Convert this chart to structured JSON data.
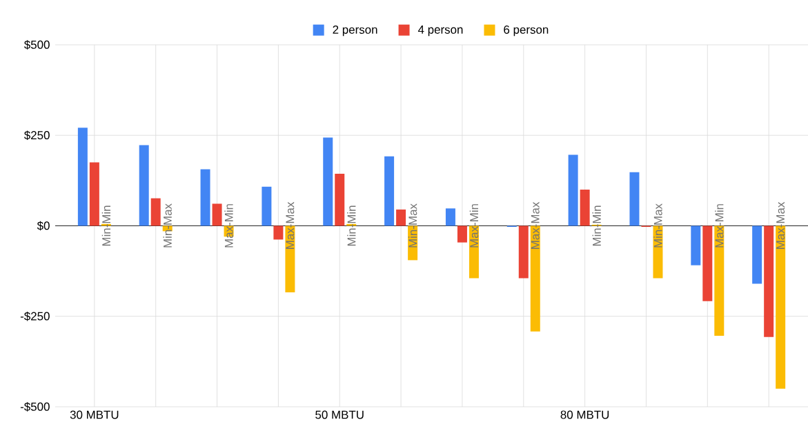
{
  "chart_data": {
    "type": "bar",
    "categories": [
      "30 MBTU",
      null,
      null,
      null,
      "50 MBTU",
      null,
      null,
      null,
      "80 MBTU",
      null,
      null,
      null
    ],
    "series": [
      {
        "name": "2 person",
        "color": "#4285f4",
        "values": [
          271,
          223,
          156,
          108,
          244,
          192,
          48,
          -3,
          196,
          148,
          -109,
          -160
        ]
      },
      {
        "name": "4 person",
        "color": "#ea4335",
        "values": [
          175,
          76,
          61,
          -38,
          144,
          45,
          -46,
          -145,
          100,
          -3,
          -208,
          -307
        ]
      },
      {
        "name": "6 person",
        "color": "#fbbc04",
        "values": [
          5,
          -15,
          -30,
          -184,
          5,
          -95,
          -145,
          -292,
          3,
          -145,
          -304,
          -450
        ],
        "value_labels": [
          "Min-Min",
          "Min-Max",
          "Max-Min",
          "Max-Max",
          "Min-Min",
          "Min-Max",
          "Max-Min",
          "Max-Max",
          "Min-Min",
          "Min-Max",
          "Max-Min",
          "Max-Max"
        ]
      }
    ],
    "ylim": [
      -500,
      500
    ],
    "yticks": [
      {
        "value": -500,
        "label": "-$500"
      },
      {
        "value": -250,
        "label": "-$250"
      },
      {
        "value": 0,
        "label": "$0"
      },
      {
        "value": 250,
        "label": "$250"
      },
      {
        "value": 500,
        "label": "$500"
      }
    ],
    "grid": true,
    "legend": "top"
  }
}
